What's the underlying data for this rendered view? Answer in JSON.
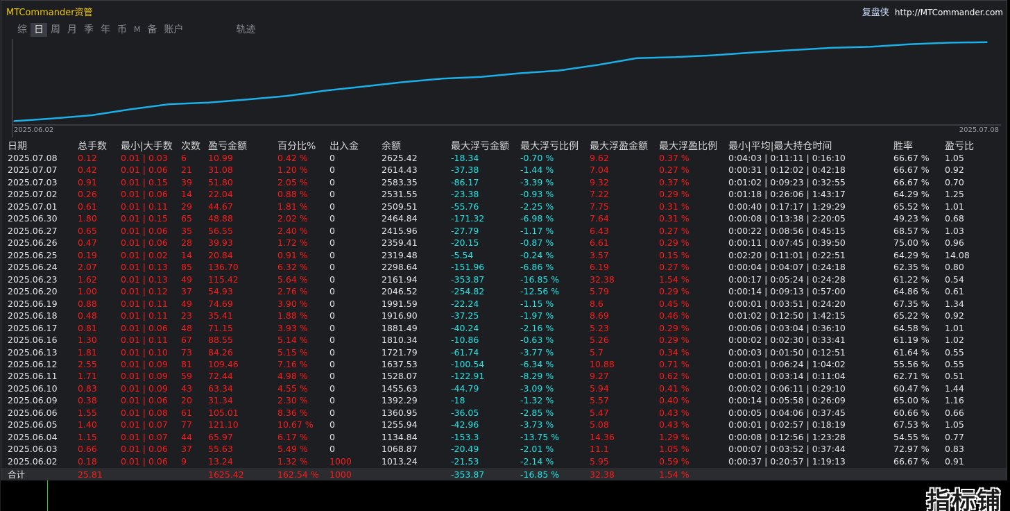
{
  "app_title": "MTCommander资管",
  "brand": {
    "name": "复盘侠",
    "url": "http://MTCommander.com"
  },
  "tabs": [
    {
      "label": "综",
      "active": false
    },
    {
      "label": "日",
      "active": true
    },
    {
      "label": "周",
      "active": false
    },
    {
      "label": "月",
      "active": false
    },
    {
      "label": "季",
      "active": false
    },
    {
      "label": "年",
      "active": false
    },
    {
      "label": "币",
      "active": false
    },
    {
      "label": "M",
      "active": false
    },
    {
      "label": "备",
      "active": false
    },
    {
      "label": "账户",
      "active": false
    },
    {
      "label": "轨迹",
      "active": false
    }
  ],
  "chart_data": {
    "type": "line",
    "x_start_label": "2025.06.02",
    "x_end_label": "2025.07.08",
    "line_color": "#1ab0e8",
    "x": [
      "2025.06.02",
      "2025.06.03",
      "2025.06.04",
      "2025.06.05",
      "2025.06.06",
      "2025.06.09",
      "2025.06.10",
      "2025.06.11",
      "2025.06.12",
      "2025.06.13",
      "2025.06.16",
      "2025.06.17",
      "2025.06.18",
      "2025.06.19",
      "2025.06.20",
      "2025.06.23",
      "2025.06.24",
      "2025.06.25",
      "2025.06.26",
      "2025.06.27",
      "2025.06.30",
      "2025.07.01",
      "2025.07.02",
      "2025.07.03",
      "2025.07.07",
      "2025.07.08"
    ],
    "values": [
      1013.24,
      1068.87,
      1134.84,
      1255.94,
      1360.95,
      1392.29,
      1455.63,
      1528.07,
      1637.53,
      1721.79,
      1810.34,
      1881.49,
      1916.9,
      1991.59,
      2046.52,
      2161.94,
      2298.64,
      2319.48,
      2359.41,
      2415.96,
      2464.84,
      2509.51,
      2531.55,
      2583.35,
      2614.43,
      2625.42
    ]
  },
  "headers": [
    "日期",
    "总手数",
    "最小|大手数",
    "次数",
    "盈亏金额",
    "百分比%",
    "出入金",
    "余额",
    "最大浮亏金额",
    "最大浮亏比例",
    "最大浮盈金额",
    "最大浮盈比例",
    "最小|平均|最大持仓时间",
    "胜率",
    "盈亏比"
  ],
  "rows": [
    [
      "2025.07.08",
      "0.12",
      "0.01 | 0.03",
      "6",
      "10.99",
      "0.42 %",
      "0",
      "2625.42",
      "-18.34",
      "-0.70 %",
      "9.62",
      "0.37 %",
      "0:04:03 | 0:11:11 | 0:16:10",
      "66.67 %",
      "1.05"
    ],
    [
      "2025.07.07",
      "0.42",
      "0.01 | 0.06",
      "21",
      "31.08",
      "1.20 %",
      "0",
      "2614.43",
      "-37.38",
      "-1.44 %",
      "7.04",
      "0.27 %",
      "0:00:31 | 0:12:02 | 0:42:18",
      "66.67 %",
      "0.92"
    ],
    [
      "2025.07.03",
      "0.91",
      "0.01 | 0.15",
      "39",
      "51.80",
      "2.05 %",
      "0",
      "2583.35",
      "-86.17",
      "-3.39 %",
      "9.32",
      "0.37 %",
      "0:01:02 | 0:09:23 | 0:32:55",
      "66.67 %",
      "0.70"
    ],
    [
      "2025.07.02",
      "0.26",
      "0.01 | 0.06",
      "14",
      "22.04",
      "0.88 %",
      "0",
      "2531.55",
      "-23.38",
      "-0.93 %",
      "7.22",
      "0.29 %",
      "0:01:18 | 0:26:06 | 1:43:17",
      "64.29 %",
      "1.25"
    ],
    [
      "2025.07.01",
      "0.61",
      "0.01 | 0.11",
      "29",
      "44.67",
      "1.81 %",
      "0",
      "2509.51",
      "-55.76",
      "-2.25 %",
      "7.75",
      "0.31 %",
      "0:00:40 | 0:17:17 | 1:29:29",
      "65.52 %",
      "1.01"
    ],
    [
      "2025.06.30",
      "1.80",
      "0.01 | 0.15",
      "65",
      "48.88",
      "2.02 %",
      "0",
      "2464.84",
      "-171.32",
      "-6.98 %",
      "7.64",
      "0.31 %",
      "0:00:08 | 0:13:38 | 2:20:05",
      "49.23 %",
      "0.68"
    ],
    [
      "2025.06.27",
      "0.65",
      "0.01 | 0.06",
      "35",
      "56.55",
      "2.40 %",
      "0",
      "2415.96",
      "-27.79",
      "-1.17 %",
      "6.43",
      "0.27 %",
      "0:00:22 | 0:08:56 | 0:45:15",
      "68.57 %",
      "1.03"
    ],
    [
      "2025.06.26",
      "0.47",
      "0.01 | 0.06",
      "28",
      "39.93",
      "1.72 %",
      "0",
      "2359.41",
      "-20.15",
      "-0.87 %",
      "6.61",
      "0.29 %",
      "0:00:11 | 0:07:45 | 0:39:50",
      "75.00 %",
      "0.96"
    ],
    [
      "2025.06.25",
      "0.19",
      "0.01 | 0.02",
      "14",
      "20.84",
      "0.91 %",
      "0",
      "2319.48",
      "-5.54",
      "-0.24 %",
      "3.57",
      "0.15 %",
      "0:02:20 | 0:11:01 | 0:22:51",
      "64.29 %",
      "14.08"
    ],
    [
      "2025.06.24",
      "2.07",
      "0.01 | 0.13",
      "85",
      "136.70",
      "6.32 %",
      "0",
      "2298.64",
      "-151.96",
      "-6.86 %",
      "6.19",
      "0.27 %",
      "0:00:04 | 0:04:07 | 0:24:18",
      "62.35 %",
      "0.80"
    ],
    [
      "2025.06.23",
      "1.62",
      "0.01 | 0.13",
      "49",
      "115.42",
      "5.64 %",
      "0",
      "2161.94",
      "-353.87",
      "-16.85 %",
      "32.38",
      "1.54 %",
      "0:00:17 | 0:05:24 | 0:24:28",
      "61.22 %",
      "0.54"
    ],
    [
      "2025.06.20",
      "1.00",
      "0.01 | 0.12",
      "37",
      "54.93",
      "2.76 %",
      "0",
      "2046.52",
      "-254.82",
      "-12.56 %",
      "5.79",
      "0.29 %",
      "0:00:14 | 0:09:13 | 0:57:00",
      "64.86 %",
      "0.61"
    ],
    [
      "2025.06.19",
      "0.88",
      "0.01 | 0.11",
      "49",
      "74.69",
      "3.90 %",
      "0",
      "1991.59",
      "-22.24",
      "-1.15 %",
      "8.6",
      "0.45 %",
      "0:00:01 | 0:03:51 | 0:24:20",
      "67.35 %",
      "1.34"
    ],
    [
      "2025.06.18",
      "0.48",
      "0.01 | 0.11",
      "23",
      "35.41",
      "1.88 %",
      "0",
      "1916.90",
      "-37.25",
      "-1.97 %",
      "8.69",
      "0.46 %",
      "0:01:02 | 0:12:50 | 1:42:15",
      "65.22 %",
      "0.92"
    ],
    [
      "2025.06.17",
      "0.81",
      "0.01 | 0.06",
      "48",
      "71.15",
      "3.93 %",
      "0",
      "1881.49",
      "-40.24",
      "-2.16 %",
      "5.23",
      "0.29 %",
      "0:00:06 | 0:03:04 | 0:36:10",
      "64.58 %",
      "1.01"
    ],
    [
      "2025.06.16",
      "1.30",
      "0.01 | 0.11",
      "67",
      "88.55",
      "5.14 %",
      "0",
      "1810.34",
      "-10.86",
      "-0.63 %",
      "5.26",
      "0.29 %",
      "0:00:02 | 0:02:30 | 0:33:41",
      "61.19 %",
      "1.02"
    ],
    [
      "2025.06.13",
      "1.81",
      "0.01 | 0.10",
      "73",
      "84.26",
      "5.15 %",
      "0",
      "1721.79",
      "-61.74",
      "-3.77 %",
      "5.7",
      "0.34 %",
      "0:00:03 | 0:01:50 | 0:12:51",
      "61.64 %",
      "0.55"
    ],
    [
      "2025.06.12",
      "2.55",
      "0.01 | 0.09",
      "81",
      "109.46",
      "7.16 %",
      "0",
      "1637.53",
      "-100.54",
      "-6.34 %",
      "10.88",
      "0.71 %",
      "0:00:01 | 0:06:24 | 1:04:02",
      "55.56 %",
      "0.55"
    ],
    [
      "2025.06.11",
      "1.71",
      "0.01 | 0.09",
      "59",
      "72.44",
      "4.98 %",
      "0",
      "1528.07",
      "-122.91",
      "-8.29 %",
      "9.27",
      "0.62 %",
      "0:00:01 | 0:03:14 | 0:11:04",
      "62.71 %",
      "0.51"
    ],
    [
      "2025.06.10",
      "0.83",
      "0.01 | 0.09",
      "43",
      "63.34",
      "4.55 %",
      "0",
      "1455.63",
      "-44.79",
      "-3.09 %",
      "5.94",
      "0.41 %",
      "0:00:02 | 0:06:11 | 0:29:10",
      "60.47 %",
      "1.44"
    ],
    [
      "2025.06.09",
      "0.38",
      "0.01 | 0.06",
      "20",
      "31.34",
      "2.30 %",
      "0",
      "1392.29",
      "-18",
      "-1.32 %",
      "5.57",
      "0.40 %",
      "0:00:14 | 0:05:58 | 0:26:09",
      "65.00 %",
      "1.16"
    ],
    [
      "2025.06.06",
      "1.55",
      "0.01 | 0.08",
      "61",
      "105.01",
      "8.36 %",
      "0",
      "1360.95",
      "-36.05",
      "-2.85 %",
      "5.47",
      "0.43 %",
      "0:00:05 | 0:04:06 | 0:37:45",
      "60.66 %",
      "0.66"
    ],
    [
      "2025.06.05",
      "1.40",
      "0.01 | 0.07",
      "77",
      "121.10",
      "10.67 %",
      "0",
      "1255.94",
      "-42.96",
      "-3.73 %",
      "5.08",
      "0.43 %",
      "0:00:01 | 0:02:57 | 0:18:19",
      "67.53 %",
      "1.05"
    ],
    [
      "2025.06.04",
      "1.15",
      "0.01 | 0.07",
      "44",
      "65.97",
      "6.17 %",
      "0",
      "1134.84",
      "-153.3",
      "-13.75 %",
      "14.36",
      "1.29 %",
      "0:00:08 | 0:12:56 | 1:23:28",
      "54.55 %",
      "0.77"
    ],
    [
      "2025.06.03",
      "0.66",
      "0.01 | 0.06",
      "37",
      "55.63",
      "5.49 %",
      "0",
      "1068.87",
      "-20.49",
      "-2.01 %",
      "11.1",
      "1.05 %",
      "0:00:07 | 0:03:52 | 0:37:44",
      "72.97 %",
      "0.83"
    ],
    [
      "2025.06.02",
      "0.18",
      "0.01 | 0.06",
      "9",
      "13.24",
      "1.32 %",
      "1000",
      "1013.24",
      "-21.53",
      "-2.14 %",
      "5.95",
      "0.59 %",
      "0:00:37 | 0:20:57 | 1:19:13",
      "66.67 %",
      "0.91"
    ]
  ],
  "totals": {
    "label": "合计",
    "lots": "25.81",
    "profit": "1625.42",
    "percent": "162.54 %",
    "deposit": "1000",
    "max_float_loss": "-353.87",
    "max_float_loss_pct": "-16.85 %",
    "max_float_profit": "32.38",
    "max_float_profit_pct": "1.54 %"
  },
  "watermark": "指标铺"
}
